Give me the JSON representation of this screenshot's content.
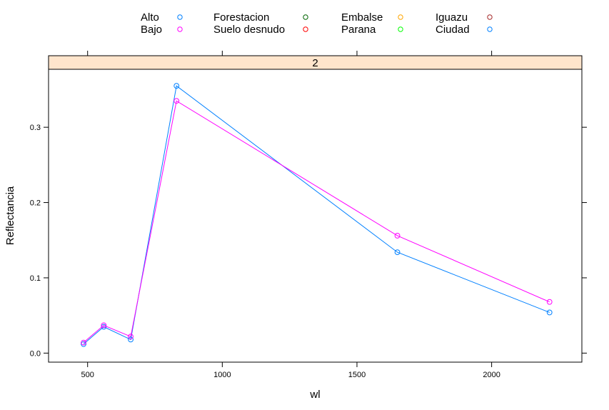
{
  "chart_data": {
    "type": "line",
    "strip_label": "2",
    "xlabel": "wl",
    "ylabel": "Reflectancia",
    "xlim": [
      355,
      2335
    ],
    "ylim": [
      -0.012,
      0.377
    ],
    "xticks": [
      500,
      1000,
      1500,
      2000
    ],
    "xtick_labels": [
      "500",
      "1000",
      "1500",
      "2000"
    ],
    "yticks": [
      0.0,
      0.1,
      0.2,
      0.3
    ],
    "ytick_labels": [
      "0.0",
      "0.1",
      "0.2",
      "0.3"
    ],
    "grid": false,
    "legend_position": "top",
    "legend": [
      {
        "name": "Alto",
        "color": "#0080ff"
      },
      {
        "name": "Bajo",
        "color": "#ff00ff"
      },
      {
        "name": "Forestacion",
        "color": "#006400"
      },
      {
        "name": "Suelo desnudo",
        "color": "#ff0000"
      },
      {
        "name": "Embalse",
        "color": "#ffa500"
      },
      {
        "name": "Parana",
        "color": "#00ff00"
      },
      {
        "name": "Iguazu",
        "color": "#a52a2a"
      },
      {
        "name": "Ciudad",
        "color": "#0080ff"
      }
    ],
    "x": [
      485,
      560,
      660,
      830,
      1650,
      2215
    ],
    "series": [
      {
        "name": "Alto",
        "color": "#0080ff",
        "values": [
          0.012,
          0.035,
          0.018,
          0.355,
          0.134,
          0.054
        ]
      },
      {
        "name": "Bajo",
        "color": "#ff00ff",
        "values": [
          0.014,
          0.037,
          0.022,
          0.335,
          0.156,
          0.068
        ]
      }
    ]
  }
}
